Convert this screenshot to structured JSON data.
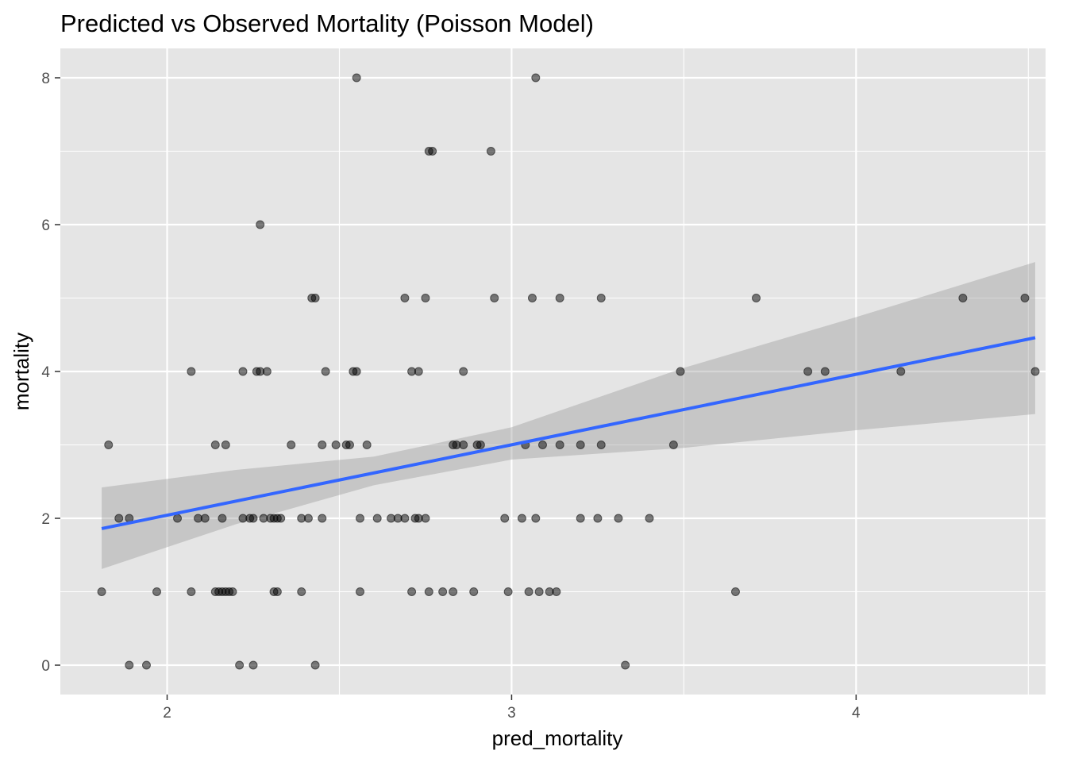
{
  "chart_data": {
    "type": "scatter",
    "title": "Predicted vs Observed Mortality (Poisson Model)",
    "xlabel": "pred_mortality",
    "ylabel": "mortality",
    "xlim": [
      1.69,
      4.55
    ],
    "ylim": [
      -0.4,
      8.4
    ],
    "x_ticks": [
      2,
      3,
      4
    ],
    "y_ticks": [
      0,
      2,
      4,
      6,
      8
    ],
    "x_tick_labels": [
      "2",
      "3",
      "4"
    ],
    "y_tick_labels": [
      "0",
      "2",
      "4",
      "6",
      "8"
    ],
    "grid": true,
    "colors": {
      "panel": "#e5e5e5",
      "grid": "#ffffff",
      "point": "#000000",
      "smooth_line": "#3366ff",
      "ribbon": "#999999"
    },
    "points": [
      {
        "x": 1.81,
        "y": 1
      },
      {
        "x": 1.83,
        "y": 3
      },
      {
        "x": 1.86,
        "y": 2
      },
      {
        "x": 1.89,
        "y": 0
      },
      {
        "x": 1.89,
        "y": 2
      },
      {
        "x": 1.94,
        "y": 0
      },
      {
        "x": 1.97,
        "y": 1
      },
      {
        "x": 2.03,
        "y": 2
      },
      {
        "x": 2.07,
        "y": 4
      },
      {
        "x": 2.07,
        "y": 1
      },
      {
        "x": 2.09,
        "y": 2
      },
      {
        "x": 2.11,
        "y": 2
      },
      {
        "x": 2.14,
        "y": 3
      },
      {
        "x": 2.14,
        "y": 1
      },
      {
        "x": 2.15,
        "y": 1
      },
      {
        "x": 2.16,
        "y": 2
      },
      {
        "x": 2.16,
        "y": 1
      },
      {
        "x": 2.17,
        "y": 1
      },
      {
        "x": 2.17,
        "y": 3
      },
      {
        "x": 2.18,
        "y": 1
      },
      {
        "x": 2.19,
        "y": 1
      },
      {
        "x": 2.21,
        "y": 0
      },
      {
        "x": 2.22,
        "y": 4
      },
      {
        "x": 2.22,
        "y": 2
      },
      {
        "x": 2.24,
        "y": 2
      },
      {
        "x": 2.25,
        "y": 0
      },
      {
        "x": 2.25,
        "y": 2
      },
      {
        "x": 2.26,
        "y": 4
      },
      {
        "x": 2.27,
        "y": 4
      },
      {
        "x": 2.27,
        "y": 6
      },
      {
        "x": 2.28,
        "y": 2
      },
      {
        "x": 2.29,
        "y": 4
      },
      {
        "x": 2.3,
        "y": 2
      },
      {
        "x": 2.31,
        "y": 2
      },
      {
        "x": 2.31,
        "y": 1
      },
      {
        "x": 2.32,
        "y": 2
      },
      {
        "x": 2.32,
        "y": 1
      },
      {
        "x": 2.33,
        "y": 2
      },
      {
        "x": 2.36,
        "y": 3
      },
      {
        "x": 2.39,
        "y": 2
      },
      {
        "x": 2.39,
        "y": 1
      },
      {
        "x": 2.41,
        "y": 2
      },
      {
        "x": 2.42,
        "y": 5
      },
      {
        "x": 2.43,
        "y": 5
      },
      {
        "x": 2.43,
        "y": 0
      },
      {
        "x": 2.45,
        "y": 2
      },
      {
        "x": 2.45,
        "y": 3
      },
      {
        "x": 2.46,
        "y": 4
      },
      {
        "x": 2.49,
        "y": 3
      },
      {
        "x": 2.52,
        "y": 3
      },
      {
        "x": 2.53,
        "y": 3
      },
      {
        "x": 2.54,
        "y": 4
      },
      {
        "x": 2.55,
        "y": 4
      },
      {
        "x": 2.55,
        "y": 8
      },
      {
        "x": 2.56,
        "y": 2
      },
      {
        "x": 2.56,
        "y": 1
      },
      {
        "x": 2.58,
        "y": 3
      },
      {
        "x": 2.61,
        "y": 2
      },
      {
        "x": 2.65,
        "y": 2
      },
      {
        "x": 2.67,
        "y": 2
      },
      {
        "x": 2.69,
        "y": 2
      },
      {
        "x": 2.69,
        "y": 5
      },
      {
        "x": 2.71,
        "y": 4
      },
      {
        "x": 2.71,
        "y": 1
      },
      {
        "x": 2.72,
        "y": 2
      },
      {
        "x": 2.73,
        "y": 2
      },
      {
        "x": 2.73,
        "y": 4
      },
      {
        "x": 2.75,
        "y": 5
      },
      {
        "x": 2.75,
        "y": 2
      },
      {
        "x": 2.76,
        "y": 7
      },
      {
        "x": 2.76,
        "y": 1
      },
      {
        "x": 2.77,
        "y": 7
      },
      {
        "x": 2.8,
        "y": 1
      },
      {
        "x": 2.83,
        "y": 3
      },
      {
        "x": 2.83,
        "y": 1
      },
      {
        "x": 2.84,
        "y": 3
      },
      {
        "x": 2.86,
        "y": 3
      },
      {
        "x": 2.86,
        "y": 4
      },
      {
        "x": 2.89,
        "y": 1
      },
      {
        "x": 2.9,
        "y": 3
      },
      {
        "x": 2.91,
        "y": 3
      },
      {
        "x": 2.94,
        "y": 7
      },
      {
        "x": 2.95,
        "y": 5
      },
      {
        "x": 2.98,
        "y": 2
      },
      {
        "x": 2.99,
        "y": 1
      },
      {
        "x": 3.03,
        "y": 2
      },
      {
        "x": 3.04,
        "y": 3
      },
      {
        "x": 3.05,
        "y": 1
      },
      {
        "x": 3.06,
        "y": 5
      },
      {
        "x": 3.07,
        "y": 8
      },
      {
        "x": 3.07,
        "y": 2
      },
      {
        "x": 3.08,
        "y": 1
      },
      {
        "x": 3.09,
        "y": 3
      },
      {
        "x": 3.11,
        "y": 1
      },
      {
        "x": 3.13,
        "y": 1
      },
      {
        "x": 3.14,
        "y": 5
      },
      {
        "x": 3.14,
        "y": 3
      },
      {
        "x": 3.2,
        "y": 2
      },
      {
        "x": 3.2,
        "y": 3
      },
      {
        "x": 3.25,
        "y": 2
      },
      {
        "x": 3.26,
        "y": 3
      },
      {
        "x": 3.26,
        "y": 5
      },
      {
        "x": 3.31,
        "y": 2
      },
      {
        "x": 3.33,
        "y": 0
      },
      {
        "x": 3.4,
        "y": 2
      },
      {
        "x": 3.47,
        "y": 3
      },
      {
        "x": 3.49,
        "y": 4
      },
      {
        "x": 3.65,
        "y": 1
      },
      {
        "x": 3.71,
        "y": 5
      },
      {
        "x": 3.86,
        "y": 4
      },
      {
        "x": 3.91,
        "y": 4
      },
      {
        "x": 4.13,
        "y": 4
      },
      {
        "x": 4.31,
        "y": 5
      },
      {
        "x": 4.49,
        "y": 5
      },
      {
        "x": 4.52,
        "y": 4
      }
    ],
    "smooth_line": [
      {
        "x": 1.81,
        "y": 1.86
      },
      {
        "x": 4.52,
        "y": 4.46
      }
    ],
    "confidence_band": [
      {
        "x": 1.81,
        "lower": 1.31,
        "upper": 2.42
      },
      {
        "x": 2.2,
        "lower": 1.92,
        "upper": 2.66
      },
      {
        "x": 2.6,
        "lower": 2.45,
        "upper": 2.84
      },
      {
        "x": 3.0,
        "lower": 2.8,
        "upper": 3.24
      },
      {
        "x": 3.5,
        "lower": 2.96,
        "upper": 4.05
      },
      {
        "x": 4.0,
        "lower": 3.2,
        "upper": 4.74
      },
      {
        "x": 4.52,
        "lower": 3.42,
        "upper": 5.49
      }
    ]
  }
}
